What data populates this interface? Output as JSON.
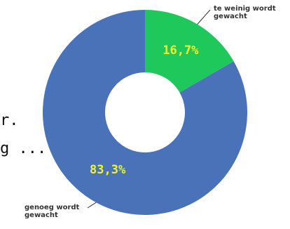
{
  "chart_data": {
    "type": "donut",
    "categories": [
      "te weinig wordt gewacht",
      "genoeg wordt gewacht"
    ],
    "values": [
      16.7,
      83.3
    ],
    "value_labels": [
      "16,7%",
      "83,3%"
    ],
    "colors": [
      "#1fc85a",
      "#4a72b8"
    ],
    "fragments": [
      "r.",
      "g ..."
    ]
  }
}
